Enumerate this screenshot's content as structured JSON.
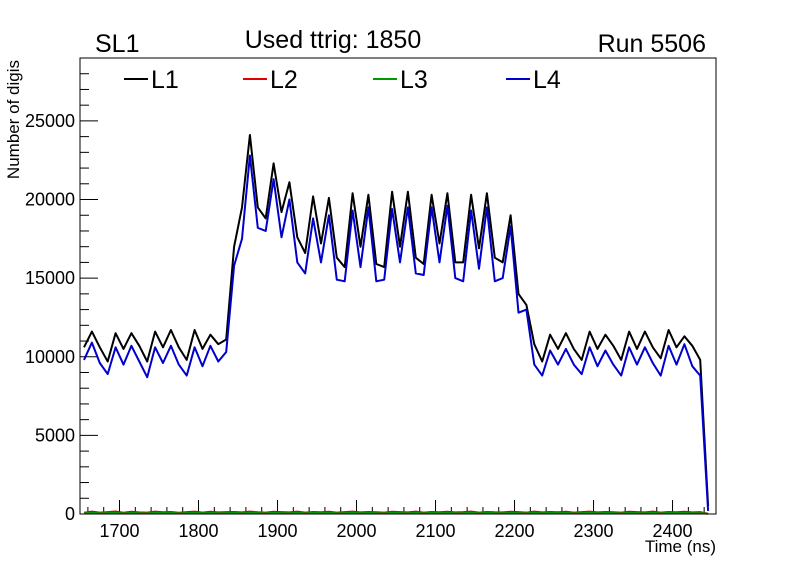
{
  "header": {
    "left_label": "SL1",
    "center_label": "Used ttrig: 1850",
    "right_label": "Run 5506"
  },
  "colors": {
    "L1": "#000000",
    "L2": "#e00000",
    "L3": "#009a00",
    "L4": "#0000cc"
  },
  "chart_data": {
    "type": "line",
    "title": "",
    "xlabel": "Time (ns)",
    "ylabel": "Number of digis",
    "xlim": [
      1650,
      2455
    ],
    "ylim": [
      0,
      29000
    ],
    "xticks": [
      1700,
      1800,
      1900,
      2000,
      2100,
      2200,
      2300,
      2400
    ],
    "yticks": [
      0,
      5000,
      10000,
      15000,
      20000,
      25000
    ],
    "legend": [
      "L1",
      "L2",
      "L3",
      "L4"
    ],
    "legend_position": "top",
    "x": [
      1655,
      1665,
      1675,
      1685,
      1695,
      1705,
      1715,
      1725,
      1735,
      1745,
      1755,
      1765,
      1775,
      1785,
      1795,
      1805,
      1815,
      1825,
      1835,
      1845,
      1855,
      1865,
      1875,
      1885,
      1895,
      1905,
      1915,
      1925,
      1935,
      1945,
      1955,
      1965,
      1975,
      1985,
      1995,
      2005,
      2015,
      2025,
      2035,
      2045,
      2055,
      2065,
      2075,
      2085,
      2095,
      2105,
      2115,
      2125,
      2135,
      2145,
      2155,
      2165,
      2175,
      2185,
      2195,
      2205,
      2215,
      2225,
      2235,
      2245,
      2255,
      2265,
      2275,
      2285,
      2295,
      2305,
      2315,
      2325,
      2335,
      2345,
      2355,
      2365,
      2375,
      2385,
      2395,
      2405,
      2415,
      2425,
      2435,
      2445
    ],
    "series": [
      {
        "name": "L1",
        "values": [
          10600,
          11600,
          10600,
          9700,
          11500,
          10500,
          11500,
          10700,
          9700,
          11600,
          10600,
          11700,
          10600,
          9800,
          11700,
          10500,
          11400,
          10800,
          11100,
          17000,
          19500,
          24100,
          19500,
          18800,
          22300,
          19200,
          21100,
          17600,
          16600,
          20200,
          17200,
          20100,
          16300,
          15700,
          20400,
          17000,
          20300,
          15900,
          15700,
          20500,
          17000,
          20500,
          16300,
          15900,
          20300,
          17200,
          20400,
          16000,
          16000,
          20300,
          16900,
          20400,
          16300,
          16000,
          19000,
          14000,
          13300,
          10800,
          9700,
          11400,
          10500,
          11500,
          10500,
          9800,
          11600,
          10500,
          11400,
          10700,
          9800,
          11600,
          10500,
          11600,
          10600,
          9900,
          11700,
          10600,
          11300,
          10700,
          9800,
          500
        ]
      },
      {
        "name": "L2",
        "values": [
          80,
          150,
          90,
          120,
          160,
          80,
          140,
          100,
          90,
          150,
          110,
          130,
          80,
          120,
          150,
          90,
          140,
          100,
          120,
          130,
          100,
          150,
          110,
          90,
          140,
          120,
          100,
          150,
          90,
          130,
          110,
          140,
          90,
          120,
          150,
          100,
          130,
          110,
          90,
          140,
          120,
          100,
          150,
          90,
          130,
          110,
          140,
          100,
          120,
          150,
          90,
          130,
          110,
          100,
          140,
          120,
          90,
          150,
          100,
          130,
          110,
          140,
          90,
          120,
          150,
          100,
          130,
          110,
          90,
          140,
          120,
          100,
          150,
          90,
          130,
          110,
          140,
          100,
          120,
          20
        ]
      },
      {
        "name": "L3",
        "values": [
          40,
          70,
          50,
          60,
          80,
          40,
          70,
          50,
          40,
          80,
          60,
          70,
          40,
          60,
          80,
          50,
          70,
          50,
          60,
          70,
          50,
          80,
          60,
          40,
          70,
          60,
          50,
          80,
          40,
          70,
          60,
          70,
          50,
          60,
          80,
          50,
          70,
          60,
          40,
          70,
          60,
          50,
          80,
          40,
          70,
          60,
          70,
          50,
          60,
          80,
          40,
          70,
          60,
          50,
          70,
          60,
          40,
          80,
          50,
          70,
          60,
          70,
          40,
          60,
          80,
          50,
          70,
          60,
          40,
          70,
          60,
          50,
          80,
          40,
          70,
          60,
          70,
          50,
          60,
          10
        ]
      },
      {
        "name": "L4",
        "values": [
          9800,
          10900,
          9600,
          8900,
          10600,
          9500,
          10700,
          9700,
          8700,
          10600,
          9600,
          10700,
          9500,
          8800,
          10600,
          9400,
          10700,
          9700,
          10300,
          15800,
          17500,
          22800,
          18200,
          18000,
          21300,
          17600,
          20000,
          16000,
          15300,
          18800,
          16000,
          19000,
          14900,
          14800,
          19300,
          15700,
          19500,
          14800,
          14900,
          19400,
          16000,
          19500,
          15300,
          15200,
          19500,
          16000,
          19600,
          15000,
          14800,
          19300,
          15600,
          19500,
          14800,
          15000,
          18300,
          12800,
          13000,
          9500,
          8800,
          10400,
          9500,
          10500,
          9500,
          8900,
          10600,
          9400,
          10400,
          9500,
          8800,
          10600,
          9500,
          10600,
          9600,
          8800,
          10700,
          9500,
          10800,
          9400,
          8800,
          200
        ]
      }
    ]
  }
}
